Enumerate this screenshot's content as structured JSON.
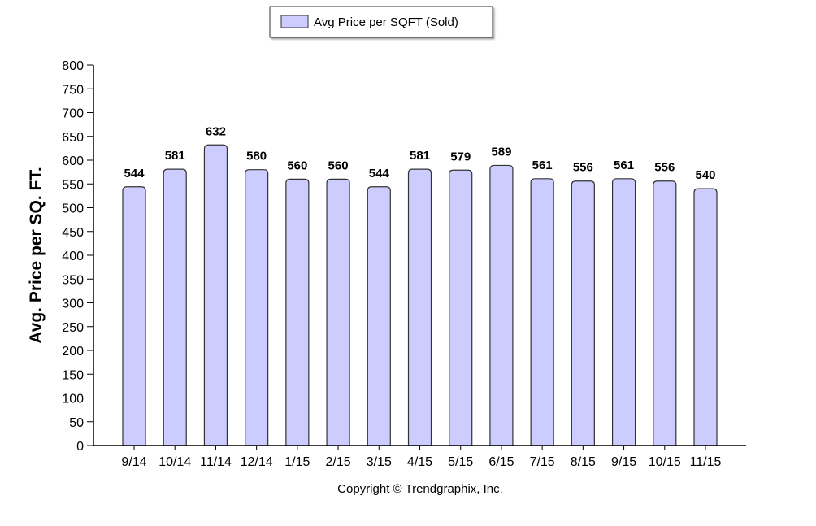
{
  "chart_data": {
    "type": "bar",
    "categories": [
      "9/14",
      "10/14",
      "11/14",
      "12/14",
      "1/15",
      "2/15",
      "3/15",
      "4/15",
      "5/15",
      "6/15",
      "7/15",
      "8/15",
      "9/15",
      "10/15",
      "11/15"
    ],
    "series": [
      {
        "name": "Avg Price per SQFT (Sold)",
        "values": [
          544,
          581,
          632,
          580,
          560,
          560,
          544,
          581,
          579,
          589,
          561,
          556,
          561,
          556,
          540
        ],
        "color": "#ccccff"
      }
    ],
    "data_labels": [
      "544",
      "581",
      "632",
      "580",
      "560",
      "560",
      "544",
      "581",
      "579",
      "589",
      "561",
      "556",
      "561",
      "556",
      "540"
    ],
    "ylabel": "Avg. Price per SQ. FT.",
    "xlabel": "",
    "ylim": [
      0,
      800
    ],
    "yticks": [
      "0",
      "50",
      "100",
      "150",
      "200",
      "250",
      "300",
      "350",
      "400",
      "450",
      "500",
      "550",
      "600",
      "650",
      "700",
      "750",
      "800"
    ],
    "grid": false,
    "legend_position": "top-center"
  },
  "legend": {
    "label": "Avg Price per SQFT (Sold)"
  },
  "footer": {
    "copyright": "Copyright © Trendgraphix, Inc."
  },
  "colors": {
    "bar_fill": "#ccccff",
    "bar_stroke": "#333333",
    "axis": "#000000",
    "text": "#000000"
  }
}
